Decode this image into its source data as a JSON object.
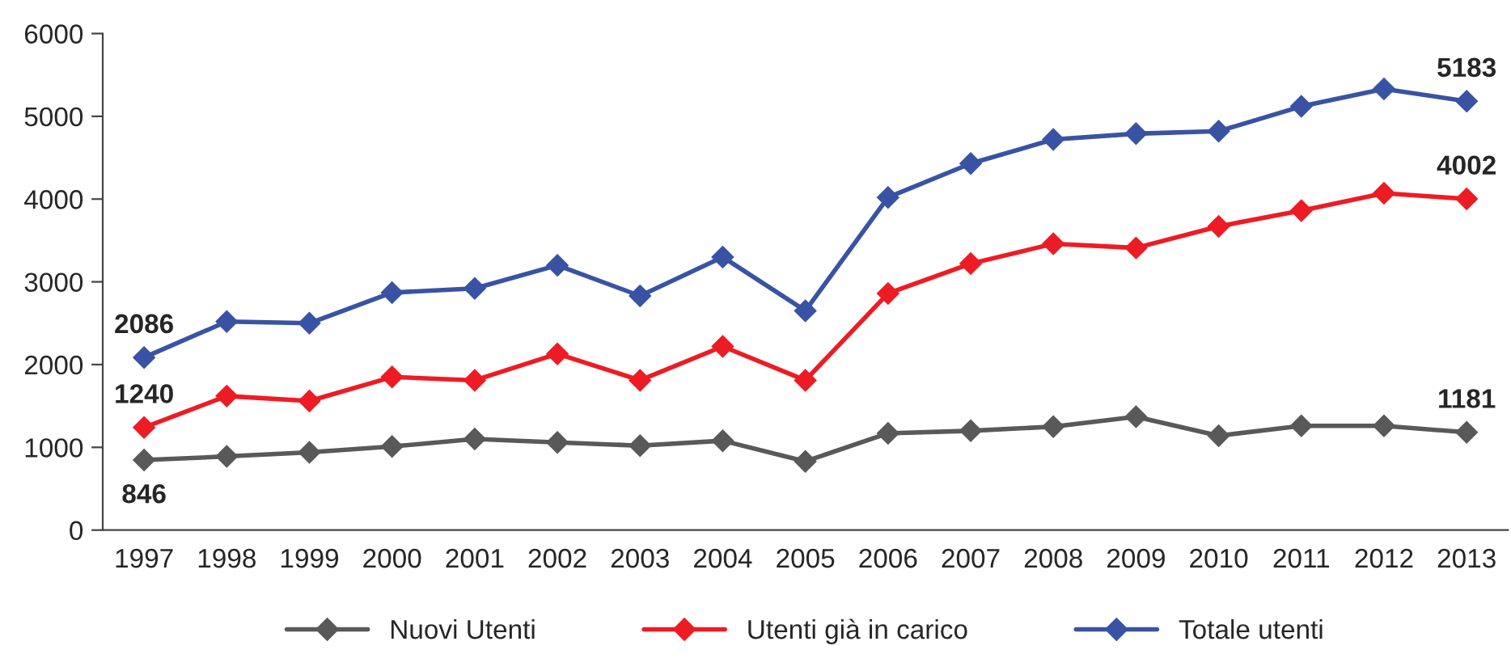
{
  "chart_data": {
    "type": "line",
    "categories": [
      "1997",
      "1998",
      "1999",
      "2000",
      "2001",
      "2002",
      "2003",
      "2004",
      "2005",
      "2006",
      "2007",
      "2008",
      "2009",
      "2010",
      "2011",
      "2012",
      "2013"
    ],
    "series": [
      {
        "name": "Nuovi Utenti",
        "color": "#595959",
        "values": [
          846,
          890,
          940,
          1010,
          1100,
          1060,
          1020,
          1080,
          830,
          1170,
          1200,
          1250,
          1370,
          1140,
          1260,
          1260,
          1181
        ]
      },
      {
        "name": "Utenti già in carico",
        "color": "#ed1c24",
        "values": [
          1240,
          1620,
          1560,
          1850,
          1810,
          2130,
          1810,
          2220,
          1810,
          2860,
          3220,
          3460,
          3410,
          3670,
          3860,
          4070,
          4002
        ]
      },
      {
        "name": "Totale utenti",
        "color": "#3953a4",
        "values": [
          2086,
          2520,
          2500,
          2870,
          2920,
          3200,
          2830,
          3300,
          2650,
          4020,
          4430,
          4720,
          4790,
          4820,
          5120,
          5330,
          5183
        ]
      }
    ],
    "ylim": [
      0,
      6000
    ],
    "yticks": [
      0,
      1000,
      2000,
      3000,
      4000,
      5000,
      6000
    ],
    "annotations": [
      {
        "text": "2086",
        "x": "1997",
        "y": 2086
      },
      {
        "text": "1240",
        "x": "1997",
        "y": 1240
      },
      {
        "text": "846",
        "x": "1997",
        "y": 846
      },
      {
        "text": "5183",
        "x": "2013",
        "y": 5183
      },
      {
        "text": "4002",
        "x": "2013",
        "y": 4002
      },
      {
        "text": "1181",
        "x": "2013",
        "y": 1181
      }
    ],
    "grid": false,
    "legend": "bottom",
    "marker": "diamond",
    "line_style": "solid"
  }
}
